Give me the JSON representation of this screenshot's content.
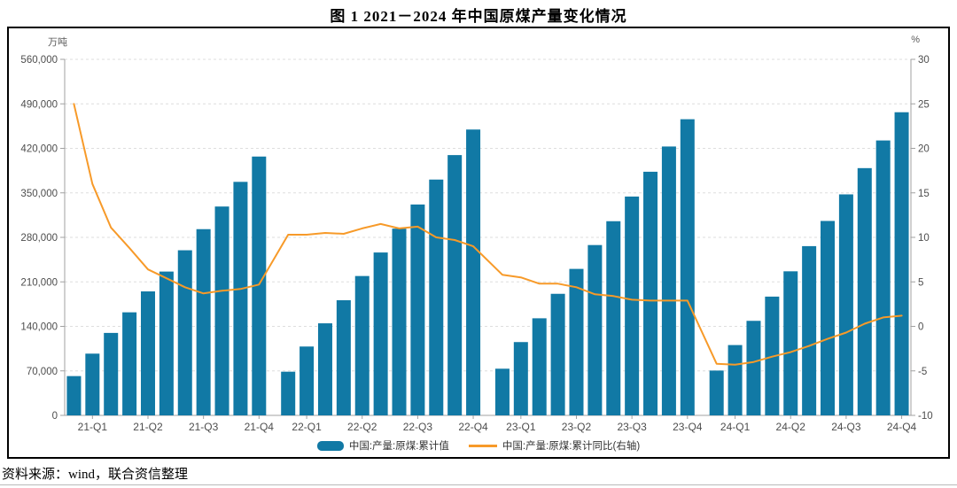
{
  "page": {
    "title": "图 1  2021－2024 年中国原煤产量变化情况",
    "source": "资料来源：wind，联合资信整理"
  },
  "chart": {
    "legend_bar_label": "中国:产量:原煤:累计值",
    "legend_line_label": "中国:产量:原煤:累计同比(右轴)",
    "colors": {
      "bar": "#1179a5",
      "line": "#f79a29",
      "grid": "#dedede",
      "axis": "#a0a0a0",
      "tick_text": "#4d4d4d"
    }
  },
  "chart_data": {
    "type": "bar+line",
    "title": "图 1  2021－2024 年中国原煤产量变化情况",
    "left_axis": {
      "unit": "万吨",
      "min": 0,
      "max": 560000,
      "step": 70000,
      "tick_labels": [
        "0",
        "70,000",
        "140,000",
        "210,000",
        "280,000",
        "350,000",
        "420,000",
        "490,000",
        "560,000"
      ]
    },
    "right_axis": {
      "unit": "%",
      "min": -10,
      "max": 30,
      "step": 5,
      "tick_labels": [
        "-10",
        "-5",
        "0",
        "5",
        "10",
        "15",
        "20",
        "25",
        "30"
      ]
    },
    "grid": "dashed-horizontal",
    "legend_position": "bottom-center",
    "groups": 4,
    "bars_per_group": 11,
    "x": [
      "2021-02",
      "2021-03",
      "2021-04",
      "2021-05",
      "2021-06",
      "2021-07",
      "2021-08",
      "2021-09",
      "2021-10",
      "2021-11",
      "2021-12",
      "2022-02",
      "2022-03",
      "2022-04",
      "2022-05",
      "2022-06",
      "2022-07",
      "2022-08",
      "2022-09",
      "2022-10",
      "2022-11",
      "2022-12",
      "2023-02",
      "2023-03",
      "2023-04",
      "2023-05",
      "2023-06",
      "2023-07",
      "2023-08",
      "2023-09",
      "2023-10",
      "2023-11",
      "2023-12",
      "2024-02",
      "2024-03",
      "2024-04",
      "2024-05",
      "2024-06",
      "2024-07",
      "2024-08",
      "2024-09",
      "2024-10",
      "2024-11",
      "2024-12"
    ],
    "x_tick_labels": [
      "21-Q1",
      "21-Q2",
      "21-Q3",
      "21-Q4",
      "22-Q1",
      "22-Q2",
      "22-Q3",
      "22-Q4",
      "23-Q1",
      "23-Q2",
      "23-Q3",
      "23-Q4",
      "24-Q1",
      "24-Q2",
      "24-Q3",
      "24-Q4"
    ],
    "x_tick_bar_indices": [
      1,
      4,
      7,
      10
    ],
    "series": [
      {
        "name": "中国:产量:原煤:累计值",
        "type": "bar",
        "axis": "left",
        "values": [
          61800,
          97100,
          129700,
          162100,
          195000,
          226200,
          259700,
          292900,
          328500,
          367300,
          407100,
          68700,
          108300,
          144800,
          181100,
          219200,
          256200,
          293700,
          331700,
          370900,
          409400,
          449600,
          73400,
          115300,
          152700,
          191200,
          230400,
          267900,
          305400,
          344200,
          383200,
          422900,
          465800,
          70500,
          110600,
          148700,
          186800,
          226600,
          266200,
          305800,
          347600,
          388900,
          432400,
          476800
        ]
      },
      {
        "name": "中国:产量:原煤:累计同比(右轴)",
        "type": "line",
        "axis": "right",
        "values": [
          25.0,
          16.0,
          11.1,
          8.8,
          6.4,
          5.4,
          4.4,
          3.7,
          4.0,
          4.2,
          4.7,
          10.3,
          10.3,
          10.5,
          10.4,
          11.0,
          11.5,
          11.0,
          11.2,
          10.0,
          9.7,
          9.0,
          5.8,
          5.5,
          4.8,
          4.8,
          4.4,
          3.6,
          3.4,
          3.0,
          2.9,
          2.9,
          2.9,
          -4.2,
          -4.3,
          -4.0,
          -3.4,
          -2.9,
          -2.2,
          -1.4,
          -0.7,
          0.3,
          1.0,
          1.2
        ]
      }
    ]
  }
}
